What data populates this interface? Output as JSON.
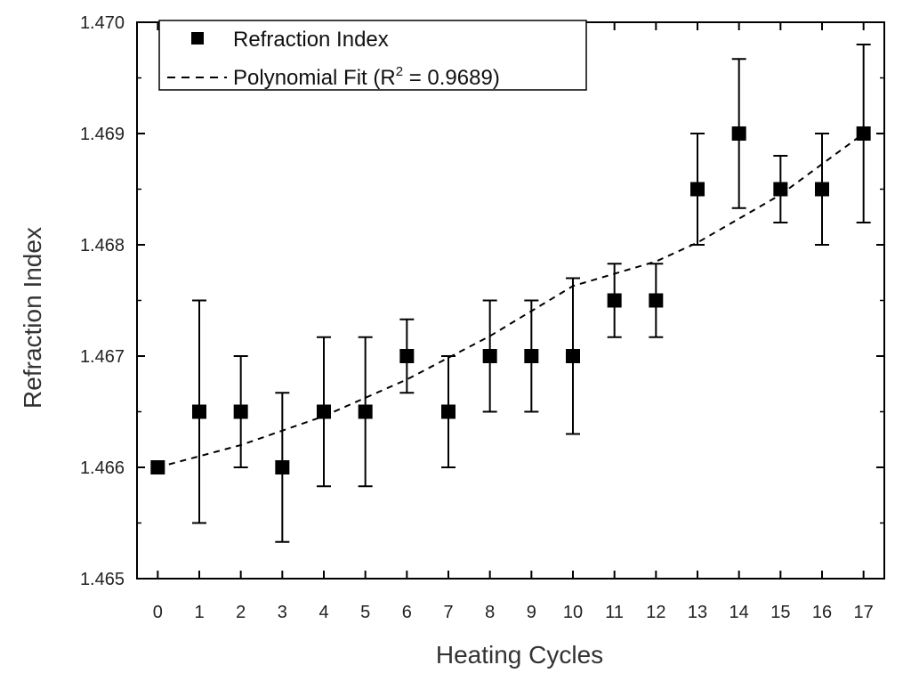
{
  "chart_data": {
    "type": "scatter",
    "title": "",
    "xlabel": "Heating Cycles",
    "ylabel": "Refraction Index",
    "xlim": [
      -0.5,
      17.5
    ],
    "ylim": [
      1.465,
      1.47
    ],
    "x_ticks": [
      0,
      1,
      2,
      3,
      4,
      5,
      6,
      7,
      8,
      9,
      10,
      11,
      12,
      13,
      14,
      15,
      16,
      17
    ],
    "y_ticks": [
      1.465,
      1.466,
      1.467,
      1.468,
      1.469,
      1.47
    ],
    "y_tick_labels": [
      "1.465",
      "1.466",
      "1.467",
      "1.468",
      "1.469",
      "1.470"
    ],
    "grid": false,
    "legend_position": "top-left",
    "series": [
      {
        "name": "Refraction Index",
        "marker": "square",
        "color": "#000000",
        "points": [
          {
            "x": 0,
            "y": 1.466,
            "err_low": 1.466,
            "err_high": 1.466
          },
          {
            "x": 1,
            "y": 1.4665,
            "err_low": 1.4655,
            "err_high": 1.4675
          },
          {
            "x": 2,
            "y": 1.4665,
            "err_low": 1.466,
            "err_high": 1.467
          },
          {
            "x": 3,
            "y": 1.466,
            "err_low": 1.46533,
            "err_high": 1.46667
          },
          {
            "x": 4,
            "y": 1.4665,
            "err_low": 1.46583,
            "err_high": 1.46717
          },
          {
            "x": 5,
            "y": 1.4665,
            "err_low": 1.46583,
            "err_high": 1.46717
          },
          {
            "x": 6,
            "y": 1.467,
            "err_low": 1.46667,
            "err_high": 1.46733
          },
          {
            "x": 7,
            "y": 1.4665,
            "err_low": 1.466,
            "err_high": 1.467
          },
          {
            "x": 8,
            "y": 1.467,
            "err_low": 1.4665,
            "err_high": 1.4675
          },
          {
            "x": 9,
            "y": 1.467,
            "err_low": 1.4665,
            "err_high": 1.4675
          },
          {
            "x": 10,
            "y": 1.467,
            "err_low": 1.4663,
            "err_high": 1.4677
          },
          {
            "x": 11,
            "y": 1.4675,
            "err_low": 1.46717,
            "err_high": 1.46783
          },
          {
            "x": 12,
            "y": 1.4675,
            "err_low": 1.46717,
            "err_high": 1.46783
          },
          {
            "x": 13,
            "y": 1.4685,
            "err_low": 1.468,
            "err_high": 1.469
          },
          {
            "x": 14,
            "y": 1.469,
            "err_low": 1.46833,
            "err_high": 1.46967
          },
          {
            "x": 15,
            "y": 1.4685,
            "err_low": 1.4682,
            "err_high": 1.4688
          },
          {
            "x": 16,
            "y": 1.4685,
            "err_low": 1.468,
            "err_high": 1.469
          },
          {
            "x": 17,
            "y": 1.469,
            "err_low": 1.4682,
            "err_high": 1.4698
          }
        ]
      },
      {
        "name": "Polynomial Fit",
        "line_style": "dashed",
        "color": "#000000",
        "points": [
          {
            "x": 0,
            "y": 1.466
          },
          {
            "x": 2,
            "y": 1.4662
          },
          {
            "x": 4,
            "y": 1.46646
          },
          {
            "x": 6,
            "y": 1.46679
          },
          {
            "x": 8,
            "y": 1.46718
          },
          {
            "x": 10,
            "y": 1.46763
          },
          {
            "x": 12,
            "y": 1.46785
          },
          {
            "x": 13,
            "y": 1.46802
          },
          {
            "x": 15,
            "y": 1.46845
          },
          {
            "x": 17,
            "y": 1.469
          }
        ]
      }
    ],
    "legend": {
      "entries": [
        {
          "label": "Refraction Index",
          "symbol": "square"
        },
        {
          "label_prefix": "Polynomial Fit (R",
          "superscript": "2",
          "label_suffix": " = 0.9689)",
          "symbol": "dashed-line"
        }
      ]
    }
  }
}
